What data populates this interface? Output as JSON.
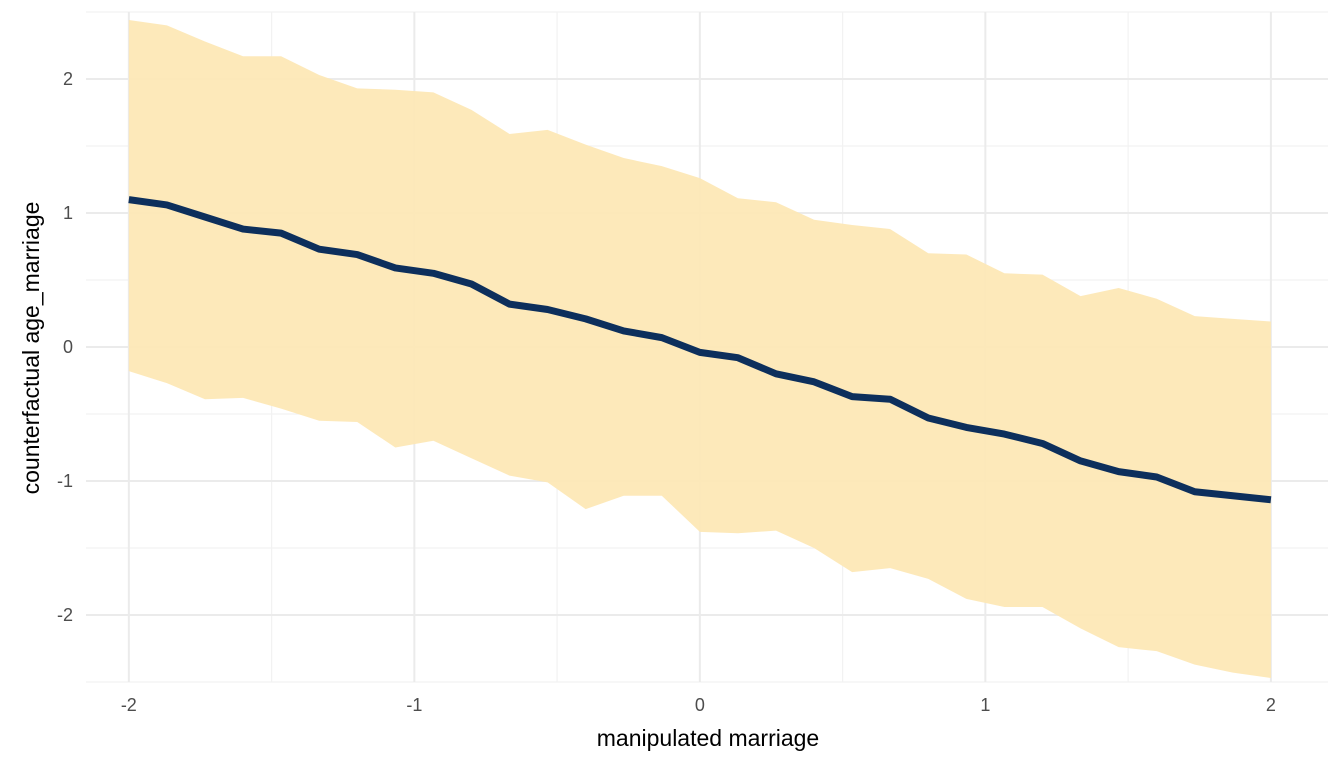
{
  "chart_data": {
    "type": "line",
    "title": "",
    "xlabel": "manipulated marriage",
    "ylabel": "counterfactual age_marriage",
    "xlim": [
      -2.15,
      2.2
    ],
    "ylim": [
      -2.5,
      2.5
    ],
    "xticks": [
      -2,
      -1,
      0,
      1,
      2
    ],
    "xtick_labels": [
      "-2",
      "-1",
      "0",
      "1",
      "2"
    ],
    "yticks": [
      -2,
      -1,
      0,
      1,
      2
    ],
    "ytick_labels": [
      "-2",
      "-1",
      "0",
      "1",
      "2"
    ],
    "grid": true,
    "legend": "none",
    "colors": {
      "line": "#0d2f5c",
      "band": "#fde8b6",
      "grid_major": "#ebebeb",
      "grid_minor": "#f2f2f2"
    },
    "x": [
      -2.0,
      -1.8667,
      -1.7333,
      -1.6,
      -1.4667,
      -1.3333,
      -1.2,
      -1.0667,
      -0.9333,
      -0.8,
      -0.6667,
      -0.5333,
      -0.4,
      -0.2667,
      -0.1333,
      0.0,
      0.1333,
      0.2667,
      0.4,
      0.5333,
      0.6667,
      0.8,
      0.9333,
      1.0667,
      1.2,
      1.3333,
      1.4667,
      1.6,
      1.7333,
      1.8667,
      2.0
    ],
    "series": [
      {
        "values": [
          1.1,
          1.06,
          0.97,
          0.88,
          0.85,
          0.73,
          0.69,
          0.59,
          0.55,
          0.47,
          0.32,
          0.28,
          0.21,
          0.12,
          0.07,
          -0.04,
          -0.08,
          -0.2,
          -0.26,
          -0.37,
          -0.39,
          -0.53,
          -0.6,
          -0.65,
          -0.72,
          -0.85,
          -0.93,
          -0.97,
          -1.08,
          -1.11,
          -1.14
        ],
        "upper": [
          2.44,
          2.4,
          2.28,
          2.17,
          2.17,
          2.03,
          1.93,
          1.92,
          1.9,
          1.77,
          1.59,
          1.62,
          1.51,
          1.41,
          1.35,
          1.26,
          1.11,
          1.08,
          0.95,
          0.91,
          0.88,
          0.7,
          0.69,
          0.55,
          0.54,
          0.38,
          0.44,
          0.36,
          0.23,
          0.21,
          0.19
        ],
        "lower": [
          -0.18,
          -0.27,
          -0.39,
          -0.38,
          -0.46,
          -0.55,
          -0.56,
          -0.75,
          -0.7,
          -0.83,
          -0.96,
          -1.01,
          -1.21,
          -1.11,
          -1.11,
          -1.38,
          -1.39,
          -1.37,
          -1.5,
          -1.68,
          -1.65,
          -1.73,
          -1.88,
          -1.94,
          -1.94,
          -2.1,
          -2.24,
          -2.27,
          -2.37,
          -2.43,
          -2.47
        ]
      }
    ]
  }
}
